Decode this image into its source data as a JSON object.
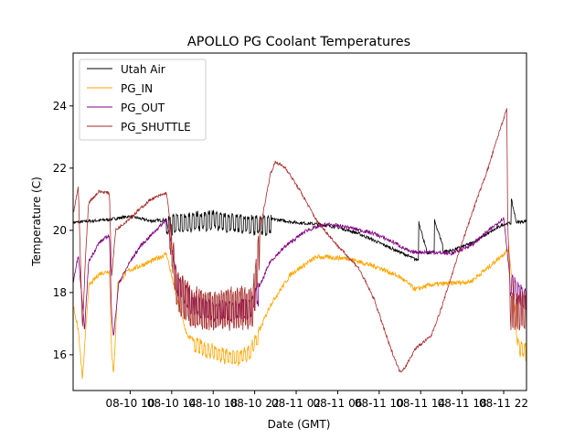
{
  "chart_data": {
    "type": "line",
    "title": "APOLLO PG Coolant Temperatures",
    "xlabel": "Date (GMT)",
    "ylabel": "Temperature (C)",
    "x_unit": "hours since 2020-08-10 08:00",
    "xlim": [
      -3.5,
      40.2
    ],
    "ylim": [
      14.85,
      25.7
    ],
    "grid": false,
    "legend_position": "top-left",
    "x_ticks": [
      {
        "x": 2,
        "label": "08-10 10"
      },
      {
        "x": 6,
        "label": "08-10 14"
      },
      {
        "x": 10,
        "label": "08-10 18"
      },
      {
        "x": 14,
        "label": "08-10 22"
      },
      {
        "x": 18,
        "label": "08-11 02"
      },
      {
        "x": 22,
        "label": "08-11 06"
      },
      {
        "x": 26,
        "label": "08-11 10"
      },
      {
        "x": 30,
        "label": "08-11 14"
      },
      {
        "x": 34,
        "label": "08-11 18"
      },
      {
        "x": 38,
        "label": "08-11 22"
      }
    ],
    "y_ticks": [
      {
        "y": 16,
        "label": "16"
      },
      {
        "y": 18,
        "label": "18"
      },
      {
        "y": 20,
        "label": "20"
      },
      {
        "y": 22,
        "label": "22"
      },
      {
        "y": 24,
        "label": "24"
      }
    ],
    "series": [
      {
        "name": "Utah Air",
        "color": "#000000",
        "noise": 0.05,
        "points": [
          [
            -3.5,
            20.25
          ],
          [
            0,
            20.35
          ],
          [
            2,
            20.45
          ],
          [
            4,
            20.3
          ],
          [
            6,
            20.35
          ],
          [
            8,
            20.45
          ],
          [
            10,
            20.5
          ],
          [
            12,
            20.4
          ],
          [
            14,
            20.35
          ],
          [
            16,
            20.35
          ],
          [
            18,
            20.25
          ],
          [
            20,
            20.2
          ],
          [
            22,
            20.1
          ],
          [
            24,
            19.9
          ],
          [
            26,
            19.6
          ],
          [
            28,
            19.3
          ],
          [
            29.6,
            19.05
          ],
          [
            31,
            19.3
          ],
          [
            33,
            19.35
          ],
          [
            35,
            19.6
          ],
          [
            37,
            20.0
          ],
          [
            38,
            20.2
          ],
          [
            40.2,
            20.3
          ]
        ],
        "oscillations": [
          {
            "from": 5.5,
            "to": 15.6,
            "amp": 0.42,
            "period": 0.38
          }
        ],
        "spikes": [
          {
            "x": 29.8,
            "peak": 20.3,
            "base": 19.3,
            "width": 0.8
          },
          {
            "x": 31.3,
            "peak": 20.35,
            "base": 19.55,
            "width": 0.8
          },
          {
            "x": 38.7,
            "peak": 21.05,
            "base": 20.3,
            "width": 0.5
          }
        ]
      },
      {
        "name": "PG_IN",
        "color": "#ffa500",
        "noise": 0.08,
        "points": [
          [
            -3.5,
            17.6
          ],
          [
            -3.0,
            16.8
          ],
          [
            -2.6,
            15.2
          ],
          [
            -2.0,
            18.2
          ],
          [
            -1.0,
            18.6
          ],
          [
            0,
            18.7
          ],
          [
            0.2,
            16.2
          ],
          [
            0.4,
            15.3
          ],
          [
            0.8,
            18.3
          ],
          [
            1.8,
            18.7
          ],
          [
            4,
            19.0
          ],
          [
            5.5,
            19.25
          ],
          [
            6.5,
            17.8
          ],
          [
            7.5,
            16.6
          ],
          [
            9,
            16.3
          ],
          [
            11,
            16.1
          ],
          [
            12.5,
            16.0
          ],
          [
            13.5,
            16.2
          ],
          [
            14.5,
            16.8
          ],
          [
            15.5,
            17.6
          ],
          [
            17.5,
            18.6
          ],
          [
            20,
            19.15
          ],
          [
            23,
            19.1
          ],
          [
            26,
            18.8
          ],
          [
            28,
            18.5
          ],
          [
            29.5,
            18.1
          ],
          [
            31,
            18.25
          ],
          [
            33,
            18.3
          ],
          [
            34.8,
            18.35
          ],
          [
            36.5,
            18.8
          ],
          [
            38.5,
            19.4
          ],
          [
            39,
            17.8
          ],
          [
            39.4,
            16.4
          ],
          [
            40.2,
            16.2
          ]
        ],
        "oscillations": [
          {
            "from": 8.2,
            "to": 14.5,
            "amp": 0.3,
            "period": 0.35
          },
          {
            "from": 38.9,
            "to": 40.2,
            "amp": 0.35,
            "period": 0.3
          }
        ],
        "spikes": []
      },
      {
        "name": "PG_OUT",
        "color": "#800080",
        "noise": 0.06,
        "points": [
          [
            -3.5,
            18.3
          ],
          [
            -3.0,
            19.2
          ],
          [
            -2.4,
            16.8
          ],
          [
            -2.0,
            19.0
          ],
          [
            -1.0,
            19.6
          ],
          [
            0,
            19.85
          ],
          [
            0.2,
            17.3
          ],
          [
            0.4,
            16.6
          ],
          [
            0.9,
            18.3
          ],
          [
            2,
            19.0
          ],
          [
            3,
            19.5
          ],
          [
            5.5,
            20.35
          ],
          [
            6.5,
            18.5
          ],
          [
            8,
            17.8
          ],
          [
            10,
            17.6
          ],
          [
            12,
            17.6
          ],
          [
            13.5,
            17.7
          ],
          [
            14.5,
            18.2
          ],
          [
            15.5,
            19.0
          ],
          [
            17,
            19.5
          ],
          [
            19,
            20.0
          ],
          [
            21,
            20.2
          ],
          [
            23,
            20.1
          ],
          [
            25.5,
            19.9
          ],
          [
            27.5,
            19.6
          ],
          [
            29,
            19.3
          ],
          [
            31,
            19.3
          ],
          [
            33,
            19.25
          ],
          [
            35,
            19.55
          ],
          [
            38,
            20.4
          ],
          [
            38.6,
            18.5
          ],
          [
            40.2,
            17.9
          ]
        ],
        "oscillations": [
          {
            "from": 6.5,
            "to": 14.5,
            "amp": 0.45,
            "period": 0.32
          },
          {
            "from": 38.6,
            "to": 40.2,
            "amp": 0.5,
            "period": 0.3
          }
        ],
        "spikes": []
      },
      {
        "name": "PG_SHUTTLE",
        "color": "#a52a2a",
        "noise": 0.05,
        "points": [
          [
            -3.5,
            20.5
          ],
          [
            -3.0,
            21.4
          ],
          [
            -2.6,
            16.8
          ],
          [
            -2.3,
            19.2
          ],
          [
            -2.0,
            20.9
          ],
          [
            -1.0,
            21.25
          ],
          [
            0,
            21.2
          ],
          [
            0.2,
            18.5
          ],
          [
            0.6,
            20.0
          ],
          [
            2,
            20.4
          ],
          [
            4,
            21.0
          ],
          [
            5.5,
            21.2
          ],
          [
            6.5,
            18.5
          ],
          [
            8,
            17.9
          ],
          [
            10,
            17.8
          ],
          [
            12,
            17.9
          ],
          [
            13.8,
            17.9
          ],
          [
            14.5,
            20.0
          ],
          [
            15.5,
            21.8
          ],
          [
            16,
            22.2
          ],
          [
            17,
            22.0
          ],
          [
            18.5,
            21.2
          ],
          [
            20,
            20.3
          ],
          [
            22,
            19.5
          ],
          [
            24,
            18.8
          ],
          [
            25.5,
            17.8
          ],
          [
            27,
            16.3
          ],
          [
            28,
            15.45
          ],
          [
            28.5,
            15.6
          ],
          [
            29.5,
            16.2
          ],
          [
            31,
            16.6
          ],
          [
            32,
            17.5
          ],
          [
            33.5,
            19.1
          ],
          [
            35,
            20.6
          ],
          [
            36.5,
            22.0
          ],
          [
            37.7,
            23.3
          ],
          [
            38.3,
            23.9
          ],
          [
            38.4,
            20.0
          ],
          [
            38.7,
            17.7
          ],
          [
            40.2,
            17.8
          ]
        ],
        "oscillations": [
          {
            "from": 5.8,
            "to": 14.6,
            "amp": 0.95,
            "period": 0.22
          },
          {
            "from": 38.6,
            "to": 40.2,
            "amp": 0.9,
            "period": 0.22
          }
        ],
        "spikes": []
      }
    ]
  }
}
